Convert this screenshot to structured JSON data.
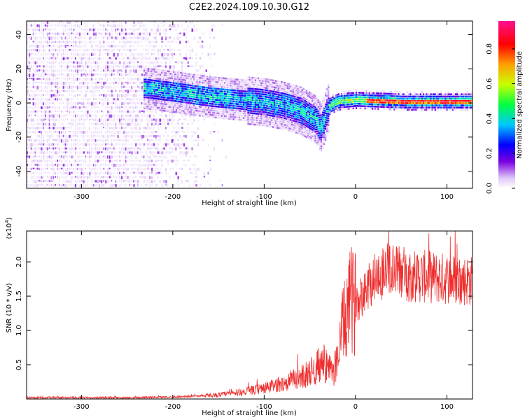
{
  "title": "C2E2.2024.109.10.30.G12",
  "chart_data": [
    {
      "type": "heatmap",
      "xlabel": "Height of straight line (km)",
      "ylabel": "Frequency (Hz)",
      "xlim": [
        -360,
        128
      ],
      "ylim": [
        -50,
        48
      ],
      "xticks": [
        -300,
        -200,
        -100,
        0,
        100
      ],
      "xtick_labels": [
        "-300",
        "-200",
        "-100",
        "0",
        "100"
      ],
      "yticks": [
        -40,
        -20,
        0,
        20,
        40
      ],
      "ytick_labels": [
        "-40",
        "-20",
        "0",
        "20",
        "40"
      ],
      "colorbar": {
        "label": "Normalized spectral amplitude",
        "range": [
          0,
          0.96
        ],
        "ticks": [
          0.0,
          0.2,
          0.4,
          0.6,
          0.8
        ],
        "tick_labels": [
          "0.0",
          "0.2",
          "0.4",
          "0.6",
          "0.8"
        ],
        "colormap": [
          "#ffffff",
          "#e8d8f8",
          "#7a00e0",
          "#0000ff",
          "#00c8ff",
          "#00ff80",
          "#c8ff00",
          "#ff8000",
          "#ff0000",
          "#ff1090"
        ]
      },
      "ridge": {
        "description_values": "frequency centre of dominant signal vs height",
        "x": [
          -230,
          -200,
          -160,
          -120,
          -100,
          -80,
          -60,
          -45,
          -38,
          -30,
          -20,
          0,
          50,
          128
        ],
        "y": [
          8,
          6,
          3,
          1,
          0,
          -2,
          -5,
          -10,
          -15,
          -3,
          0,
          1,
          0,
          0
        ]
      },
      "noise_region_x": [
        -360,
        -190
      ]
    },
    {
      "type": "line",
      "xlabel": "Height of straight line (km)",
      "ylabel": "SNR (10 * v/v)",
      "yunit_label": "(x10",
      "yunit_exp": "4",
      "yunit_close": ")",
      "xlim": [
        -360,
        128
      ],
      "ylim": [
        0,
        2.45
      ],
      "xticks": [
        -300,
        -200,
        -100,
        0,
        100
      ],
      "xtick_labels": [
        "-300",
        "-200",
        "-100",
        "0",
        "100"
      ],
      "yticks": [
        0.5,
        1.0,
        1.5,
        2.0
      ],
      "ytick_labels": [
        "0.5",
        "1.0",
        "1.5",
        "2.0"
      ],
      "color": "#ee2e2e",
      "series": [
        {
          "x": [
            -360,
            -300,
            -250,
            -200,
            -180,
            -150,
            -130,
            -110,
            -100,
            -80,
            -60,
            -45,
            -35,
            -25,
            -20,
            -15,
            -10,
            -5,
            0,
            10,
            20,
            30,
            40,
            50,
            60,
            80,
            100,
            128
          ],
          "y": [
            0.02,
            0.02,
            0.02,
            0.03,
            0.04,
            0.06,
            0.09,
            0.13,
            0.16,
            0.22,
            0.32,
            0.42,
            0.55,
            0.35,
            0.6,
            1.0,
            1.2,
            1.45,
            1.4,
            1.6,
            1.75,
            1.85,
            1.88,
            1.85,
            1.8,
            1.78,
            1.75,
            1.72
          ]
        }
      ]
    }
  ]
}
